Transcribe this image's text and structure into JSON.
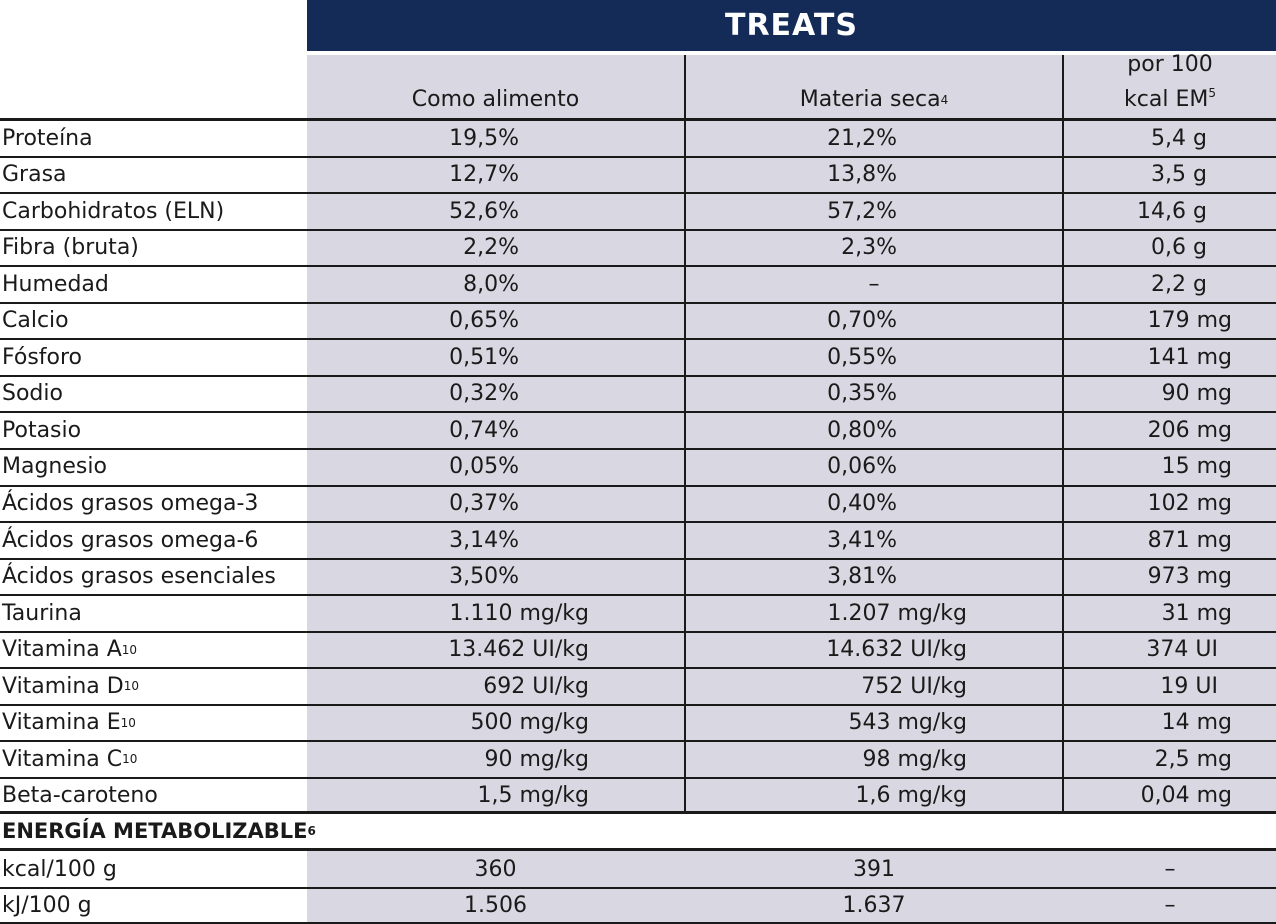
{
  "title": "TREATS",
  "headers": {
    "col1": "Como alimento",
    "col2": "Materia seca",
    "col2_sup": "4",
    "col3_line1": "por 100",
    "col3_line2": "kcal EM",
    "col3_sup": "5"
  },
  "rows": [
    {
      "label": "Proteína",
      "sup": "",
      "c1": "19,5%",
      "c2": "21,2%",
      "c3": "5,4 g"
    },
    {
      "label": "Grasa",
      "sup": "",
      "c1": "12,7%",
      "c2": "13,8%",
      "c3": "3,5 g"
    },
    {
      "label": "Carbohidratos (ELN)",
      "sup": "",
      "c1": "52,6%",
      "c2": "57,2%",
      "c3": "14,6 g"
    },
    {
      "label": "Fibra (bruta)",
      "sup": "",
      "c1": "2,2%",
      "c2": "2,3%",
      "c3": "0,6 g"
    },
    {
      "label": "Humedad",
      "sup": "",
      "c1": "8,0%",
      "c2": "–",
      "c3": "2,2 g"
    },
    {
      "label": "Calcio",
      "sup": "",
      "c1": "0,65%",
      "c2": "0,70%",
      "c3": "179 mg"
    },
    {
      "label": "Fósforo",
      "sup": "",
      "c1": "0,51%",
      "c2": "0,55%",
      "c3": "141 mg"
    },
    {
      "label": "Sodio",
      "sup": "",
      "c1": "0,32%",
      "c2": "0,35%",
      "c3": "90 mg"
    },
    {
      "label": "Potasio",
      "sup": "",
      "c1": "0,74%",
      "c2": "0,80%",
      "c3": "206 mg"
    },
    {
      "label": "Magnesio",
      "sup": "",
      "c1": "0,05%",
      "c2": "0,06%",
      "c3": "15 mg"
    },
    {
      "label": "Ácidos grasos omega-3",
      "sup": "",
      "c1": "0,37%",
      "c2": "0,40%",
      "c3": "102 mg"
    },
    {
      "label": "Ácidos grasos omega-6",
      "sup": "",
      "c1": "3,14%",
      "c2": "3,41%",
      "c3": "871 mg"
    },
    {
      "label": "Ácidos grasos esenciales",
      "sup": "",
      "c1": "3,50%",
      "c2": "3,81%",
      "c3": "973 mg"
    },
    {
      "label": "Taurina",
      "sup": "",
      "c1": "1.110 mg/kg",
      "c2": "1.207 mg/kg",
      "c3": "31 mg"
    },
    {
      "label": "Vitamina A",
      "sup": "10",
      "c1": "13.462 UI/kg",
      "c2": "14.632 UI/kg",
      "c3": "374 UI"
    },
    {
      "label": "Vitamina D",
      "sup": "10",
      "c1": "692 UI/kg",
      "c2": "752 UI/kg",
      "c3": "19 UI"
    },
    {
      "label": "Vitamina E",
      "sup": "10",
      "c1": "500 mg/kg",
      "c2": "543 mg/kg",
      "c3": "14 mg"
    },
    {
      "label": "Vitamina C",
      "sup": "10",
      "c1": "90 mg/kg",
      "c2": "98 mg/kg",
      "c3": "2,5 mg"
    },
    {
      "label": "Beta-caroteno",
      "sup": "",
      "c1": "1,5 mg/kg",
      "c2": "1,6 mg/kg",
      "c3": "0,04 mg"
    }
  ],
  "energy": {
    "title": "ENERGÍA METABOLIZABLE",
    "title_sup": "6",
    "rows": [
      {
        "label": "kcal/100 g",
        "c1": "360",
        "c2": "391",
        "c3": "–"
      },
      {
        "label": "kJ/100 g",
        "c1": "1.506",
        "c2": "1.637",
        "c3": "–"
      }
    ]
  },
  "colors": {
    "banner": "#142b57",
    "shade": "#d9d8e2"
  }
}
